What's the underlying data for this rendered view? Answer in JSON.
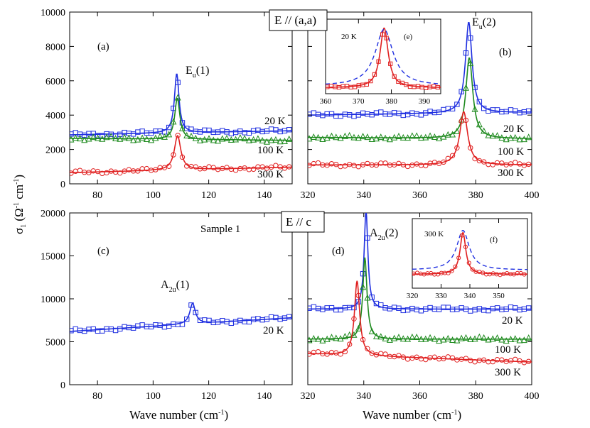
{
  "colors": {
    "blue": "#1f2fe0",
    "green": "#1e8a1e",
    "red": "#e02020",
    "frame": "#000000"
  },
  "labels": {
    "ylabel": {
      "main": "σ",
      "sub": "1",
      "rest1": " (Ω",
      "sup1": "-1",
      "rest2": " cm",
      "sup2": "-1",
      "rest3": ")"
    },
    "xlabel": {
      "main": "Wave number (cm",
      "sup": "-1",
      "end": ")"
    },
    "box_top": "E // (a,a)",
    "box_bottom": "E // c",
    "sample": "Sample 1"
  },
  "chart_data": [
    {
      "id": "a",
      "panel_label": "(a)",
      "type": "line",
      "xlim": [
        70,
        150
      ],
      "ylim": [
        0,
        10000
      ],
      "xticks": [
        80,
        100,
        120,
        140
      ],
      "yticks": [
        0,
        2000,
        4000,
        6000,
        8000,
        10000
      ],
      "peak_label": {
        "main": "E",
        "sub": "u",
        "rest": "(1)"
      },
      "temp_labels": [
        "20 K",
        "100 K",
        "300 K"
      ],
      "series": [
        {
          "name": "20 K",
          "color": "blue",
          "marker": "square",
          "base": 2850,
          "slope": 3,
          "peak": {
            "x0": 108.5,
            "gamma": 1.0,
            "A": 3450
          }
        },
        {
          "name": "100 K",
          "color": "green",
          "marker": "triangle",
          "base": 2650,
          "slope": -1.5,
          "peak": {
            "x0": 108.7,
            "gamma": 1.1,
            "A": 2400
          }
        },
        {
          "name": "300 K",
          "color": "red",
          "marker": "circle",
          "base": 650,
          "slope": 4,
          "peak": {
            "x0": 108.8,
            "gamma": 1.4,
            "A": 2000
          }
        }
      ]
    },
    {
      "id": "b",
      "panel_label": "(b)",
      "type": "line",
      "xlim": [
        320,
        400
      ],
      "ylim": [
        0,
        10000
      ],
      "xticks": [
        320,
        340,
        360,
        380,
        400
      ],
      "yticks": [],
      "peak_label": {
        "main": "E",
        "sub": "u",
        "rest": "(2)"
      },
      "temp_labels": [
        "20 K",
        "100 K",
        "300 K"
      ],
      "series": [
        {
          "name": "20 K",
          "color": "blue",
          "marker": "square",
          "base": 4000,
          "slope": 2,
          "peak": {
            "x0": 377.5,
            "gamma": 1.4,
            "A": 5300
          }
        },
        {
          "name": "100 K",
          "color": "green",
          "marker": "triangle",
          "base": 2700,
          "slope": -1,
          "peak": {
            "x0": 377.7,
            "gamma": 1.5,
            "A": 4700
          }
        },
        {
          "name": "300 K",
          "color": "red",
          "marker": "circle",
          "base": 1100,
          "slope": 0,
          "peak": {
            "x0": 375.7,
            "gamma": 1.7,
            "A": 3100
          }
        }
      ],
      "inset": {
        "panel_label": "(e)",
        "temp": "20 K",
        "xlim": [
          360,
          395
        ],
        "xticks": [
          360,
          370,
          380,
          390
        ],
        "series": [
          {
            "name": "20 K",
            "color": "red",
            "marker": "square",
            "base": 0.1,
            "slope": 0,
            "peak": {
              "x0": 377.8,
              "gamma": 1.5,
              "A": 1.0
            }
          }
        ]
      }
    },
    {
      "id": "c",
      "panel_label": "(c)",
      "type": "line",
      "xlim": [
        70,
        150
      ],
      "ylim": [
        0,
        20000
      ],
      "xticks": [
        80,
        100,
        120,
        140
      ],
      "yticks": [
        0,
        5000,
        10000,
        15000,
        20000
      ],
      "peak_label": {
        "main": "A",
        "sub": "2u",
        "rest": "(1)"
      },
      "temp_labels": [
        "20 K"
      ],
      "series": [
        {
          "name": "20 K",
          "color": "blue",
          "marker": "square",
          "base": 6200,
          "slope": 20,
          "peak": {
            "x0": 114.2,
            "gamma": 1.2,
            "A": 2400
          }
        }
      ]
    },
    {
      "id": "d",
      "panel_label": "(d)",
      "type": "line",
      "xlim": [
        320,
        400
      ],
      "ylim": [
        0,
        20000
      ],
      "xticks": [
        320,
        340,
        360,
        380,
        400
      ],
      "yticks": [],
      "peak_label": {
        "main": "A",
        "sub": "2u",
        "rest": "(2)"
      },
      "temp_labels": [
        "20 K",
        "100 K",
        "300 K"
      ],
      "series": [
        {
          "name": "20 K",
          "color": "blue",
          "marker": "square",
          "base": 8800,
          "slope": 0,
          "peak": {
            "x0": 340.8,
            "gamma": 0.8,
            "A": 11500
          }
        },
        {
          "name": "100 K",
          "color": "green",
          "marker": "triangle",
          "base": 5300,
          "slope": 0,
          "peak": {
            "x0": 340.4,
            "gamma": 0.9,
            "A": 9500
          }
        },
        {
          "name": "300 K",
          "color": "red",
          "marker": "circle",
          "base": 3600,
          "slope": -12,
          "peak": {
            "x0": 337.6,
            "gamma": 1.1,
            "A": 8700
          }
        }
      ],
      "inset": {
        "panel_label": "(f)",
        "temp": "300 K",
        "xlim": [
          320,
          360
        ],
        "xticks": [
          320,
          330,
          340,
          350
        ],
        "series": [
          {
            "name": "300 K",
            "color": "red",
            "marker": "circle",
            "base": 0.25,
            "slope": 0,
            "peak": {
              "x0": 337.6,
              "gamma": 1.2,
              "A": 0.75
            }
          }
        ]
      }
    }
  ]
}
